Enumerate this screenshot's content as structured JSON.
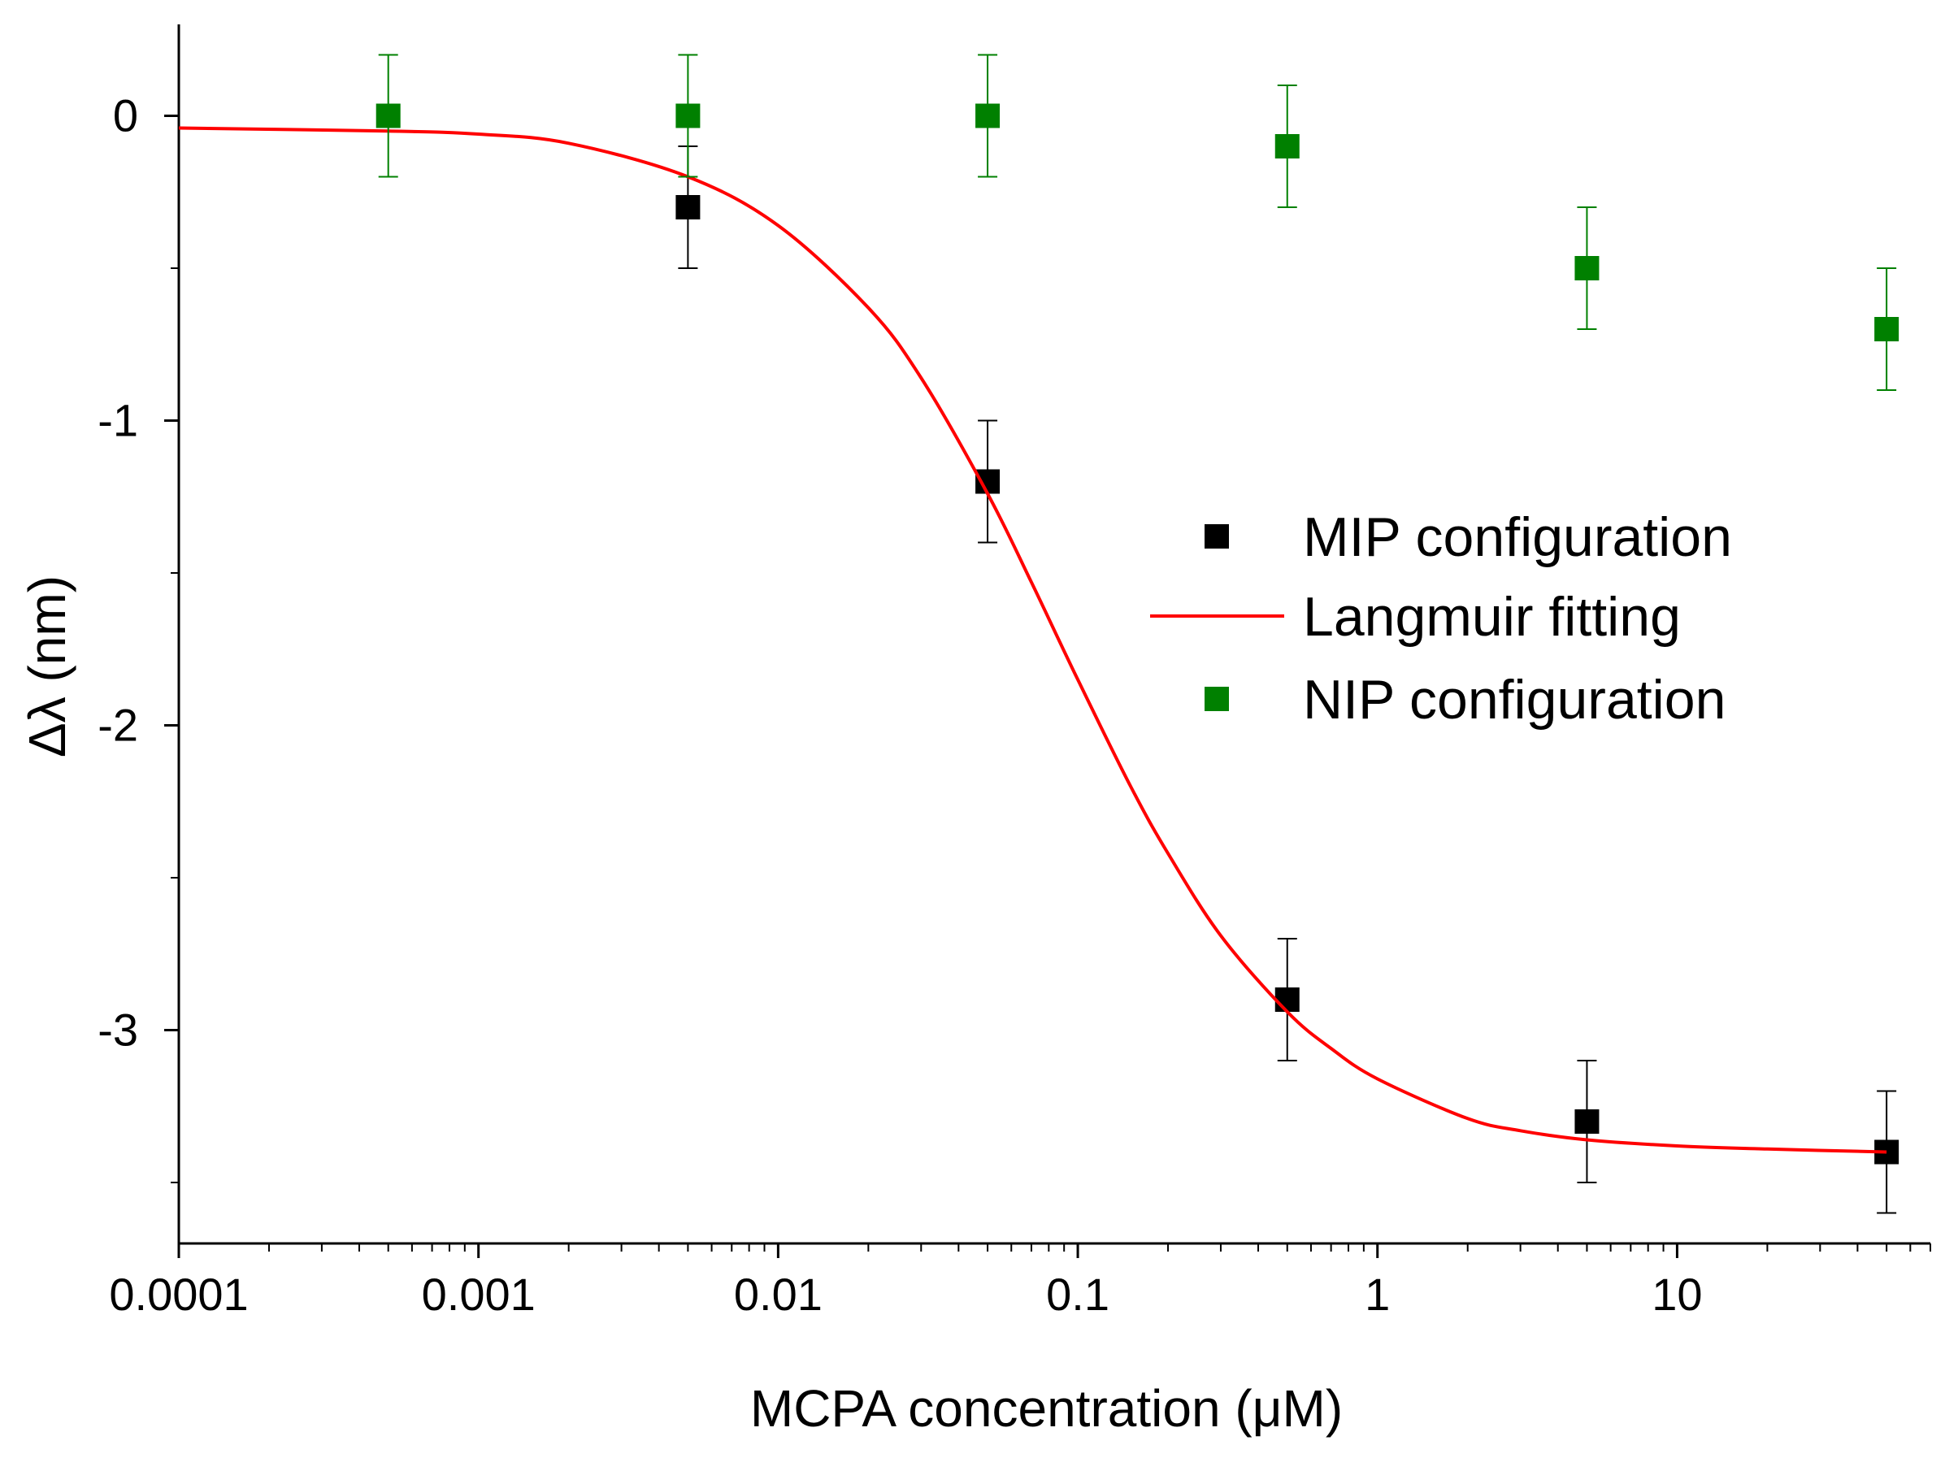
{
  "chart_data": {
    "type": "scatter",
    "xlabel": "MCPA concentration (μM)",
    "ylabel": "Δλ (nm)",
    "x_scale": "log",
    "xlim": [
      0.0001,
      70
    ],
    "ylim": [
      -3.7,
      0.3
    ],
    "x_ticks": [
      0.0001,
      0.001,
      0.01,
      0.1,
      1,
      10
    ],
    "x_tick_labels": [
      "0.0001",
      "0.001",
      "0.01",
      "0.1",
      "1",
      "10"
    ],
    "y_ticks": [
      0,
      -1,
      -2,
      -3
    ],
    "y_tick_labels": [
      "0",
      "-1",
      "-2",
      "-3"
    ],
    "legend_position": "right-center",
    "series": [
      {
        "name": "MIP configuration",
        "kind": "points",
        "color": "#000000",
        "x": [
          0.005,
          0.05,
          0.5,
          5,
          50
        ],
        "y": [
          -0.3,
          -1.2,
          -2.9,
          -3.3,
          -3.4
        ],
        "error": [
          0.2,
          0.2,
          0.2,
          0.2,
          0.2
        ]
      },
      {
        "name": "Langmuir fitting",
        "kind": "line",
        "color": "#ff0000",
        "x": [
          0.0001,
          0.0005,
          0.001,
          0.002,
          0.005,
          0.01,
          0.02,
          0.03,
          0.05,
          0.07,
          0.1,
          0.15,
          0.2,
          0.3,
          0.5,
          0.7,
          1,
          2,
          3,
          5,
          10,
          20,
          50
        ],
        "y": [
          -0.04,
          -0.05,
          -0.06,
          -0.09,
          -0.2,
          -0.36,
          -0.63,
          -0.86,
          -1.24,
          -1.53,
          -1.85,
          -2.2,
          -2.42,
          -2.69,
          -2.94,
          -3.06,
          -3.16,
          -3.29,
          -3.33,
          -3.36,
          -3.38,
          -3.39,
          -3.4
        ]
      },
      {
        "name": "NIP configuration",
        "kind": "points",
        "color": "#008000",
        "x": [
          0.0005,
          0.005,
          0.05,
          0.5,
          5,
          50
        ],
        "y": [
          0.0,
          0.0,
          0.0,
          -0.1,
          -0.5,
          -0.7
        ],
        "error": [
          0.2,
          0.2,
          0.2,
          0.2,
          0.2,
          0.2
        ]
      }
    ]
  }
}
